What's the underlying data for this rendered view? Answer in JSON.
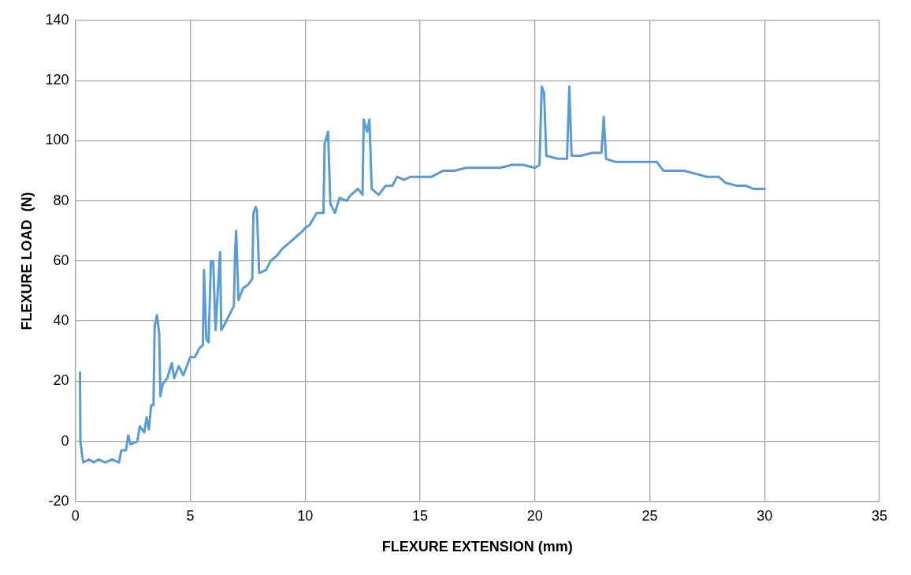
{
  "chart_data": {
    "type": "line",
    "xlabel": "FLEXURE EXTENSION (mm)",
    "ylabel": "FLEXURE LOAD  (N)",
    "xlim": [
      0,
      35
    ],
    "xticks": [
      0,
      5,
      10,
      15,
      20,
      25,
      30,
      35
    ],
    "ylim": [
      -20,
      140
    ],
    "yticks": [
      -20,
      0,
      20,
      40,
      60,
      80,
      100,
      120,
      140
    ],
    "grid": true,
    "legend": false,
    "marker": "none",
    "line_style": "solid",
    "series": [
      {
        "color": "#5b9bd5",
        "x": [
          0.2,
          0.22,
          0.3,
          0.35,
          0.6,
          0.8,
          1.0,
          1.3,
          1.6,
          1.9,
          2.0,
          2.2,
          2.3,
          2.4,
          2.7,
          2.8,
          3.0,
          3.1,
          3.2,
          3.3,
          3.4,
          3.45,
          3.55,
          3.65,
          3.7,
          3.8,
          4.0,
          4.2,
          4.3,
          4.5,
          4.7,
          4.9,
          5.0,
          5.2,
          5.4,
          5.55,
          5.6,
          5.7,
          5.8,
          5.9,
          6.0,
          6.1,
          6.3,
          6.35,
          6.5,
          6.7,
          6.9,
          6.95,
          7.0,
          7.1,
          7.3,
          7.5,
          7.7,
          7.75,
          7.85,
          7.9,
          8.0,
          8.3,
          8.5,
          8.8,
          9.0,
          9.3,
          9.6,
          9.9,
          10.0,
          10.2,
          10.5,
          10.8,
          10.85,
          11.0,
          11.1,
          11.3,
          11.5,
          11.8,
          12.0,
          12.3,
          12.5,
          12.55,
          12.7,
          12.8,
          12.9,
          13.2,
          13.5,
          13.8,
          14.0,
          14.3,
          14.6,
          15.0,
          15.5,
          16.0,
          16.5,
          17.0,
          17.5,
          18.0,
          18.5,
          19.0,
          19.5,
          20.0,
          20.2,
          20.25,
          20.3,
          20.4,
          20.5,
          21.0,
          21.4,
          21.5,
          21.6,
          22.0,
          22.5,
          22.9,
          23.0,
          23.1,
          23.5,
          24.0,
          24.5,
          25.0,
          25.3,
          25.6,
          26.0,
          26.5,
          27.0,
          27.5,
          28.0,
          28.3,
          28.8,
          29.2,
          29.5,
          30.0
        ],
        "values": [
          23,
          0,
          -5,
          -7,
          -6,
          -7,
          -6,
          -7,
          -6,
          -7,
          -3,
          -3,
          2,
          -1,
          0,
          5,
          3,
          8,
          4,
          12,
          12,
          38,
          42,
          36,
          15,
          19,
          21,
          26,
          21,
          25,
          22,
          26,
          28,
          28,
          31,
          32,
          57,
          34,
          33,
          60,
          60,
          37,
          63,
          37,
          39,
          42,
          45,
          63,
          70,
          47,
          51,
          52,
          54,
          76,
          78,
          77,
          56,
          57,
          60,
          62,
          64,
          66,
          68,
          70,
          71,
          72,
          76,
          76,
          99,
          103,
          79,
          76,
          81,
          80,
          82,
          84,
          82,
          107,
          103,
          107,
          84,
          82,
          85,
          85,
          88,
          87,
          88,
          88,
          88,
          90,
          90,
          91,
          91,
          91,
          91,
          92,
          92,
          91,
          92,
          105,
          118,
          116,
          95,
          94,
          94,
          118,
          95,
          95,
          96,
          96,
          108,
          94,
          93,
          93,
          93,
          93,
          93,
          90,
          90,
          90,
          89,
          88,
          88,
          86,
          85,
          85,
          84,
          84
        ]
      }
    ]
  }
}
